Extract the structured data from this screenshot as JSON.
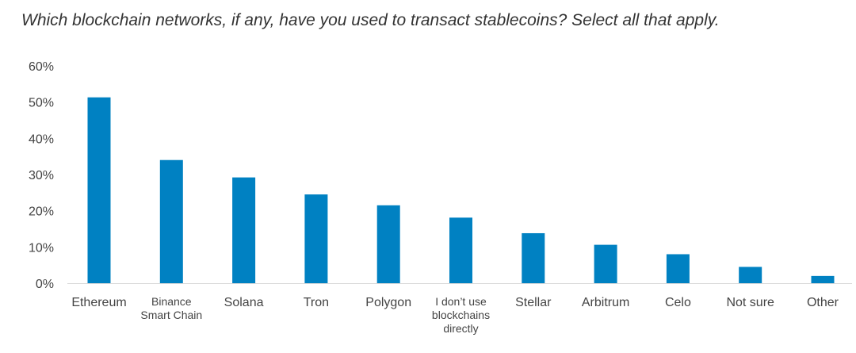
{
  "chart_data": {
    "type": "bar",
    "title": "Which blockchain networks, if any, have you used to transact stablecoins? Select all that apply.",
    "xlabel": "",
    "ylabel": "",
    "categories": [
      "Ethereum",
      "Binance Smart Chain",
      "Solana",
      "Tron",
      "Polygon",
      "I don’t use blockchains directly",
      "Stellar",
      "Arbitrum",
      "Celo",
      "Not sure",
      "Other"
    ],
    "values": [
      51.3,
      34.0,
      29.2,
      24.5,
      21.5,
      18.1,
      13.8,
      10.6,
      8.0,
      4.5,
      2.0
    ],
    "value_unit": "%",
    "ylim": [
      0,
      60
    ],
    "yticks": [
      "0%",
      "10%",
      "20%",
      "30%",
      "40%",
      "50%",
      "60%"
    ],
    "grid": false,
    "bar_color": "#0081c2"
  }
}
